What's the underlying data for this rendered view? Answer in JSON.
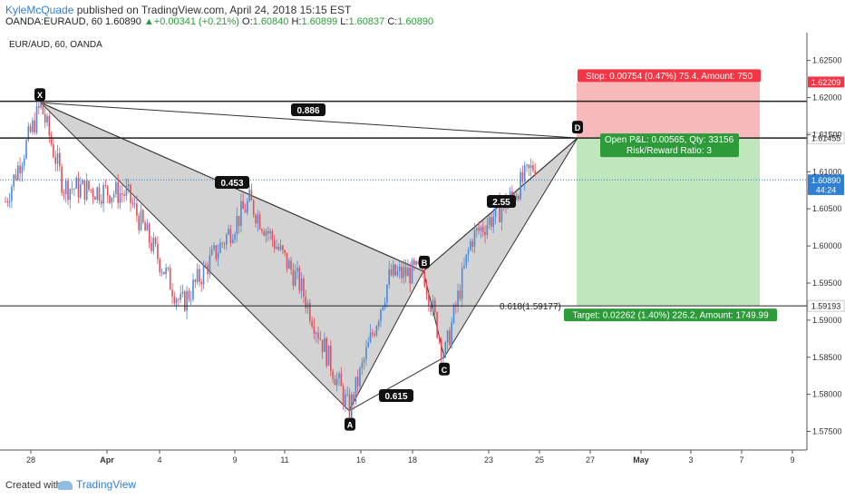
{
  "header": {
    "author": "KyleMcQuade",
    "published_text": "published on TradingView.com, April 24, 2018 15:15 EST",
    "symbol": "OANDA:EURAUD, 60",
    "last": "1.60890",
    "change": "+0.00341 (+0.21%)",
    "o_label": "O:",
    "o": "1.60840",
    "h_label": "H:",
    "h": "1.60899",
    "l_label": "L:",
    "l": "1.60837",
    "c_label": "C:",
    "c": "1.60890"
  },
  "footer": {
    "created_with": "Created with",
    "brand": "TradingView"
  },
  "chart_data": {
    "type": "candlestick",
    "title": "EUR/AUD, 60, OANDA",
    "ylim": [
      1.5725,
      1.6285
    ],
    "y_ticks": [
      "1.62500",
      "1.62000",
      "1.61500",
      "1.61000",
      "1.60500",
      "1.60000",
      "1.59500",
      "1.59000",
      "1.58500",
      "1.58000",
      "1.57500"
    ],
    "x_ticks": [
      "28",
      "Apr",
      "4",
      "9",
      "11",
      "16",
      "18",
      "23",
      "25",
      "27",
      "May",
      "3",
      "7",
      "9"
    ],
    "price_tags": [
      {
        "label": "1.62209",
        "price": 1.62209,
        "color": "#f23645"
      },
      {
        "label": "1.61455",
        "price": 1.61455,
        "color": "#ffffff",
        "text": "#222222"
      },
      {
        "label": "1.60890",
        "price": 1.6089,
        "color": "#2f7fd3"
      },
      {
        "label": "44:24",
        "price": 1.6076,
        "color": "#2f7fd3"
      },
      {
        "label": "1.59193",
        "price": 1.59193,
        "color": "#ffffff",
        "text": "#222222"
      }
    ],
    "horizontal_lines": [
      1.6195,
      1.61455
    ],
    "current_price": 1.6089,
    "pattern": {
      "points": [
        {
          "label": "X",
          "price": 1.6193
        },
        {
          "label": "A",
          "price": 1.5778
        },
        {
          "label": "B",
          "price": 1.5966
        },
        {
          "label": "C",
          "price": 1.585
        },
        {
          "label": "D",
          "price": 1.61455
        }
      ],
      "ratios": [
        "0.886",
        "0.453",
        "0.615",
        "2.55"
      ],
      "fib_label": "0.618(1.59177)"
    },
    "position": {
      "stop_label": "Stop: 0.00754 (0.47%) 75.4, Amount: 750",
      "open_label": "Open P&L: 0.00565, Qty: 33156",
      "rr_label": "Risk/Reward Ratio: 3",
      "target_label": "Target: 0.02262 (1.40%) 226.2, Amount: 1749.99",
      "entry": 1.61455,
      "stop": 1.62209,
      "target": 1.59193
    },
    "colors": {
      "up": "#4a8ad6",
      "down": "#e0505a",
      "risk": "#f7b9b9",
      "reward": "#bfe6bc",
      "pattern": "#c4c4c4"
    }
  }
}
